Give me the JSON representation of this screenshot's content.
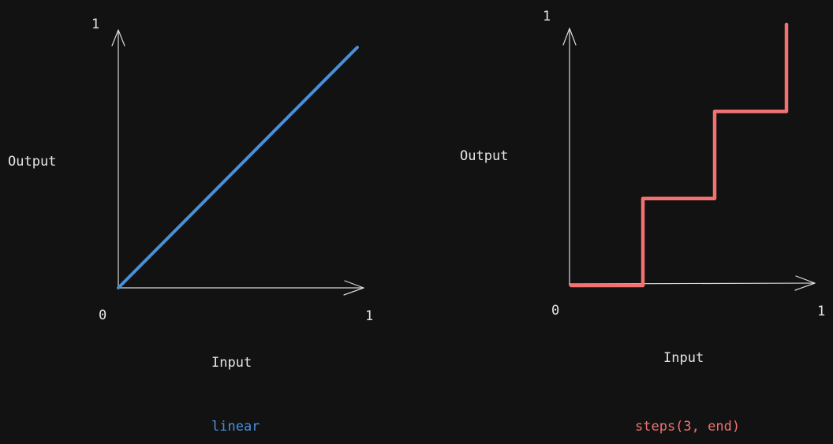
{
  "chart_data": [
    {
      "type": "line",
      "title": "linear",
      "xlabel": "Input",
      "ylabel": "Output",
      "xlim": [
        0,
        1
      ],
      "ylim": [
        0,
        1
      ],
      "x_ticks": [
        "0",
        "1"
      ],
      "y_ticks": [
        "1"
      ],
      "color": "#4a90d9",
      "x": [
        0,
        1
      ],
      "y": [
        0,
        1
      ]
    },
    {
      "type": "line",
      "title": "steps(3, end)",
      "xlabel": "Input",
      "ylabel": "Output",
      "xlim": [
        0,
        1
      ],
      "ylim": [
        0,
        1
      ],
      "x_ticks": [
        "0",
        "1"
      ],
      "y_ticks": [
        "1"
      ],
      "color": "#f27272",
      "x": [
        0,
        0.3333,
        0.3333,
        0.6667,
        0.6667,
        1,
        1
      ],
      "y": [
        0,
        0,
        0.3333,
        0.3333,
        0.6667,
        0.6667,
        1
      ]
    }
  ]
}
